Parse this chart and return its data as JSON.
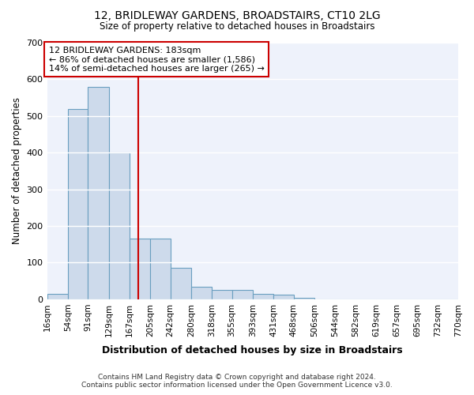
{
  "title": "12, BRIDLEWAY GARDENS, BROADSTAIRS, CT10 2LG",
  "subtitle": "Size of property relative to detached houses in Broadstairs",
  "xlabel": "Distribution of detached houses by size in Broadstairs",
  "ylabel": "Number of detached properties",
  "footer_line1": "Contains HM Land Registry data © Crown copyright and database right 2024.",
  "footer_line2": "Contains public sector information licensed under the Open Government Licence v3.0.",
  "annotation_line1": "12 BRIDLEWAY GARDENS: 183sqm",
  "annotation_line2": "← 86% of detached houses are smaller (1,586)",
  "annotation_line3": "14% of semi-detached houses are larger (265) →",
  "bar_color": "#cddaeb",
  "bar_edge_color": "#6a9fc0",
  "marker_color": "#cc0000",
  "background_color": "#eef2fb",
  "grid_color": "#ffffff",
  "bin_edges": [
    16,
    54,
    91,
    129,
    167,
    205,
    242,
    280,
    318,
    355,
    393,
    431,
    468,
    506,
    544,
    582,
    619,
    657,
    695,
    732,
    770
  ],
  "bin_labels": [
    "16sqm",
    "54sqm",
    "91sqm",
    "129sqm",
    "167sqm",
    "205sqm",
    "242sqm",
    "280sqm",
    "318sqm",
    "355sqm",
    "393sqm",
    "431sqm",
    "468sqm",
    "506sqm",
    "544sqm",
    "582sqm",
    "619sqm",
    "657sqm",
    "695sqm",
    "732sqm",
    "770sqm"
  ],
  "bar_heights": [
    15,
    520,
    580,
    400,
    165,
    165,
    85,
    35,
    25,
    25,
    15,
    12,
    5,
    0,
    0,
    0,
    0,
    0,
    0,
    0
  ],
  "property_size": 183,
  "ylim": [
    0,
    700
  ],
  "yticks": [
    0,
    100,
    200,
    300,
    400,
    500,
    600,
    700
  ]
}
